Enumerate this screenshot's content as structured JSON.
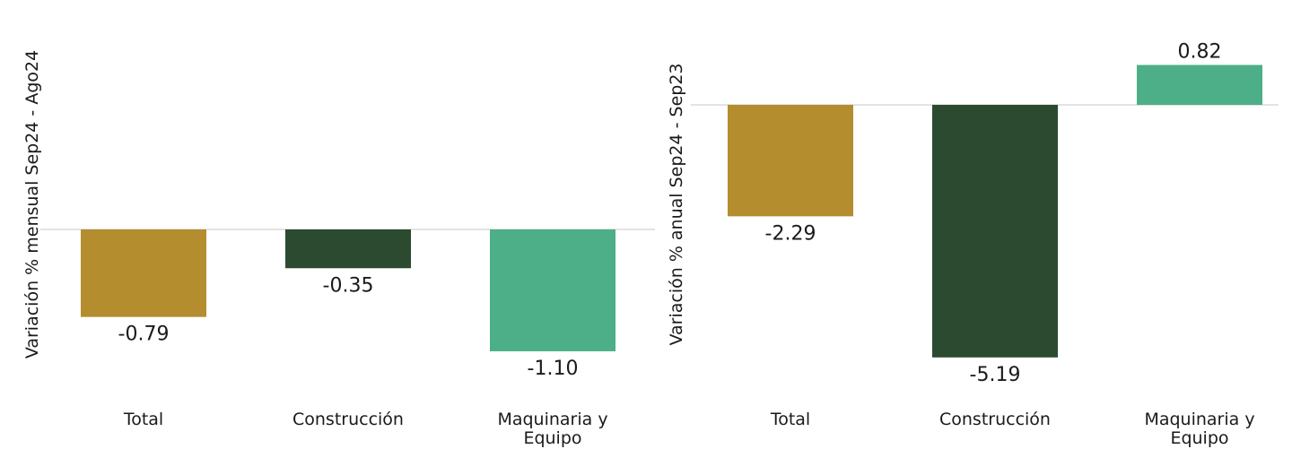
{
  "chart_data": [
    {
      "type": "bar",
      "title": "",
      "xlabel": "",
      "ylabel": "Variación % mensual Sep24 - Ago24",
      "categories": [
        "Total",
        "Construcción",
        "Maquinaria y Equipo"
      ],
      "category_lines": [
        [
          "Total"
        ],
        [
          "Construcción"
        ],
        [
          "Maquinaria y",
          "Equipo"
        ]
      ],
      "values": [
        -0.79,
        -0.35,
        -1.1
      ],
      "value_labels": [
        "-0.79",
        "-0.35",
        "-1.10"
      ],
      "ylim": [
        -1.6,
        1.6
      ],
      "grid": false,
      "legend": "none",
      "colors": [
        "#b38d2e",
        "#2c4a2f",
        "#4caf88"
      ]
    },
    {
      "type": "bar",
      "title": "",
      "xlabel": "",
      "ylabel": "Variación % anual Sep24 - Sep23",
      "categories": [
        "Total",
        "Construcción",
        "Maquinaria y Equipo"
      ],
      "category_lines": [
        [
          "Total"
        ],
        [
          "Construcción"
        ],
        [
          "Maquinaria y",
          "Equipo"
        ]
      ],
      "values": [
        -2.29,
        -5.19,
        0.82
      ],
      "value_labels": [
        "-2.29",
        "-5.19",
        "0.82"
      ],
      "ylim": [
        -6.5,
        2.0
      ],
      "grid": false,
      "legend": "none",
      "colors": [
        "#b38d2e",
        "#2c4a2f",
        "#4caf88"
      ]
    }
  ]
}
